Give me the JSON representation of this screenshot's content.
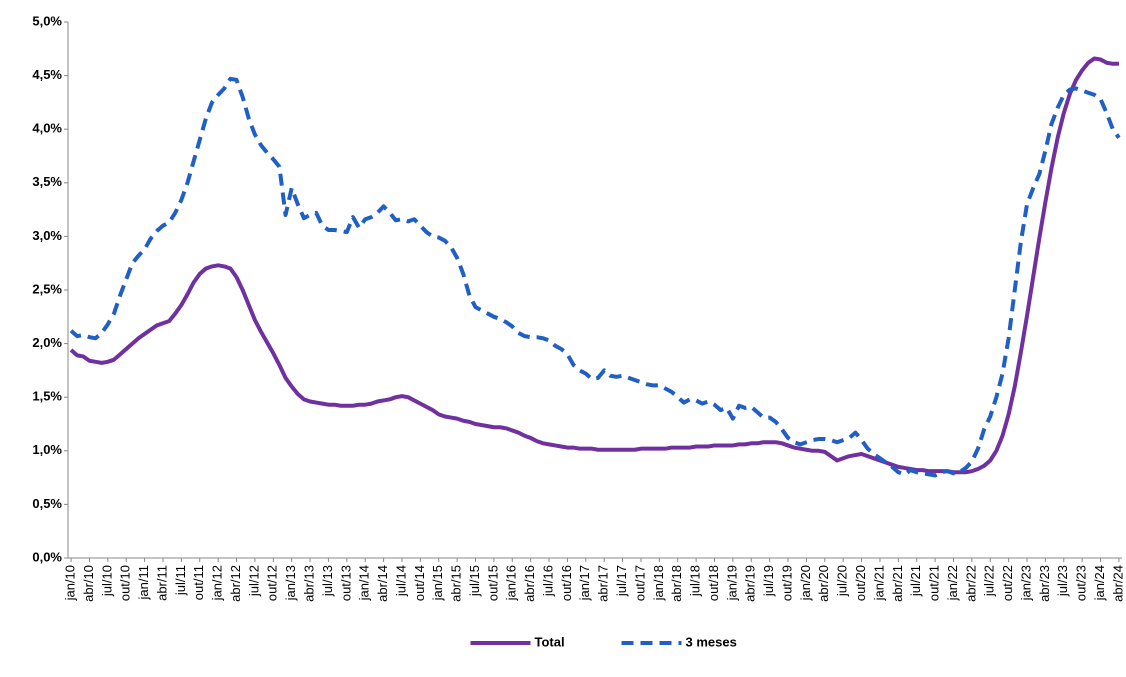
{
  "chart_data": {
    "type": "line",
    "categories": [
      "jan/10",
      null,
      null,
      "abr/10",
      null,
      null,
      "jul/10",
      null,
      null,
      "out/10",
      null,
      null,
      "jan/11",
      null,
      null,
      "abr/11",
      null,
      null,
      "jul/11",
      null,
      null,
      "out/11",
      null,
      null,
      "jan/12",
      null,
      null,
      "abr/12",
      null,
      null,
      "jul/12",
      null,
      null,
      "out/12",
      null,
      null,
      "jan/13",
      null,
      null,
      "abr/13",
      null,
      null,
      "jul/13",
      null,
      null,
      "out/13",
      null,
      null,
      "jan/14",
      null,
      null,
      "abr/14",
      null,
      null,
      "jul/14",
      null,
      null,
      "out/14",
      null,
      null,
      "jan/15",
      null,
      null,
      "abr/15",
      null,
      null,
      "jul/15",
      null,
      null,
      "out/15",
      null,
      null,
      "jan/16",
      null,
      null,
      "abr/16",
      null,
      null,
      "jul/16",
      null,
      null,
      "out/16",
      null,
      null,
      "jan/17",
      null,
      null,
      "abr/17",
      null,
      null,
      "jul/17",
      null,
      null,
      "out/17",
      null,
      null,
      "jan/18",
      null,
      null,
      "abr/18",
      null,
      null,
      "jul/18",
      null,
      null,
      "out/18",
      null,
      null,
      "jan/19",
      null,
      null,
      "abr/19",
      null,
      null,
      "jul/19",
      null,
      null,
      "out/19",
      null,
      null,
      "jan/20",
      null,
      null,
      "abr/20",
      null,
      null,
      "jul/20",
      null,
      null,
      "out/20",
      null,
      null,
      "jan/21",
      null,
      null,
      "abr/21",
      null,
      null,
      "jul/21",
      null,
      null,
      "out/21",
      null,
      null,
      "jan/22",
      null,
      null,
      "abr/22",
      null,
      null,
      "jul/22",
      null,
      null,
      "out/22",
      null,
      null,
      "jan/23",
      null,
      null,
      "abr/23",
      null,
      null,
      "jul/23",
      null,
      null,
      "out/23",
      null,
      null,
      "jan/24",
      null,
      null,
      "abr/24"
    ],
    "series": [
      {
        "name": "Total",
        "color": "#7030a0",
        "dash": false,
        "values": [
          1.94,
          1.89,
          1.88,
          1.84,
          1.83,
          1.82,
          1.83,
          1.85,
          1.9,
          1.95,
          2.0,
          2.05,
          2.09,
          2.13,
          2.17,
          2.19,
          2.21,
          2.28,
          2.36,
          2.46,
          2.57,
          2.65,
          2.7,
          2.72,
          2.73,
          2.72,
          2.7,
          2.62,
          2.5,
          2.36,
          2.22,
          2.11,
          2.01,
          1.91,
          1.8,
          1.68,
          1.6,
          1.53,
          1.48,
          1.46,
          1.45,
          1.44,
          1.43,
          1.43,
          1.42,
          1.42,
          1.42,
          1.43,
          1.43,
          1.44,
          1.46,
          1.47,
          1.48,
          1.5,
          1.51,
          1.5,
          1.47,
          1.44,
          1.41,
          1.38,
          1.34,
          1.32,
          1.31,
          1.3,
          1.28,
          1.27,
          1.25,
          1.24,
          1.23,
          1.22,
          1.22,
          1.21,
          1.19,
          1.17,
          1.14,
          1.12,
          1.09,
          1.07,
          1.06,
          1.05,
          1.04,
          1.03,
          1.03,
          1.02,
          1.02,
          1.02,
          1.01,
          1.01,
          1.01,
          1.01,
          1.01,
          1.01,
          1.01,
          1.02,
          1.02,
          1.02,
          1.02,
          1.02,
          1.03,
          1.03,
          1.03,
          1.03,
          1.04,
          1.04,
          1.04,
          1.05,
          1.05,
          1.05,
          1.05,
          1.06,
          1.06,
          1.07,
          1.07,
          1.08,
          1.08,
          1.08,
          1.07,
          1.05,
          1.03,
          1.02,
          1.01,
          1.0,
          1.0,
          0.99,
          0.95,
          0.91,
          0.93,
          0.95,
          0.96,
          0.97,
          0.95,
          0.93,
          0.91,
          0.89,
          0.87,
          0.85,
          0.84,
          0.83,
          0.82,
          0.82,
          0.81,
          0.81,
          0.81,
          0.81,
          0.8,
          0.8,
          0.8,
          0.81,
          0.83,
          0.86,
          0.91,
          1.0,
          1.14,
          1.34,
          1.6,
          1.92,
          2.26,
          2.62,
          2.98,
          3.32,
          3.64,
          3.92,
          4.15,
          4.33,
          4.46,
          4.55,
          4.62,
          4.66,
          4.65,
          4.62,
          4.61,
          4.61
        ]
      },
      {
        "name": "3 meses",
        "color": "#1f5fc6",
        "dash": true,
        "values": [
          2.12,
          2.07,
          2.08,
          2.06,
          2.05,
          2.1,
          2.18,
          2.28,
          2.45,
          2.6,
          2.75,
          2.82,
          2.88,
          2.98,
          3.05,
          3.1,
          3.13,
          3.22,
          3.34,
          3.5,
          3.7,
          3.9,
          4.1,
          4.25,
          4.32,
          4.38,
          4.47,
          4.46,
          4.3,
          4.1,
          3.95,
          3.85,
          3.78,
          3.72,
          3.65,
          3.2,
          3.45,
          3.3,
          3.17,
          3.2,
          3.22,
          3.1,
          3.06,
          3.06,
          3.05,
          3.04,
          3.18,
          3.08,
          3.16,
          3.18,
          3.22,
          3.28,
          3.22,
          3.15,
          3.16,
          3.14,
          3.16,
          3.1,
          3.04,
          3.0,
          2.99,
          2.96,
          2.9,
          2.8,
          2.65,
          2.45,
          2.34,
          2.31,
          2.28,
          2.25,
          2.23,
          2.2,
          2.16,
          2.1,
          2.07,
          2.06,
          2.06,
          2.05,
          2.03,
          1.98,
          1.95,
          1.9,
          1.8,
          1.75,
          1.72,
          1.67,
          1.68,
          1.75,
          1.7,
          1.69,
          1.7,
          1.68,
          1.66,
          1.64,
          1.62,
          1.61,
          1.61,
          1.58,
          1.55,
          1.5,
          1.45,
          1.48,
          1.47,
          1.44,
          1.46,
          1.43,
          1.38,
          1.4,
          1.3,
          1.42,
          1.4,
          1.41,
          1.36,
          1.31,
          1.31,
          1.27,
          1.2,
          1.12,
          1.08,
          1.06,
          1.08,
          1.1,
          1.11,
          1.11,
          1.1,
          1.08,
          1.1,
          1.12,
          1.17,
          1.1,
          1.02,
          0.97,
          0.93,
          0.89,
          0.85,
          0.8,
          0.78,
          0.82,
          0.8,
          0.79,
          0.78,
          0.77,
          0.8,
          0.81,
          0.79,
          0.8,
          0.84,
          0.9,
          1.02,
          1.2,
          1.32,
          1.5,
          1.72,
          2.05,
          2.5,
          2.95,
          3.3,
          3.45,
          3.58,
          3.8,
          4.05,
          4.2,
          4.32,
          4.37,
          4.38,
          4.36,
          4.34,
          4.32,
          4.28,
          4.15,
          4.0,
          3.92
        ]
      }
    ],
    "ylim": [
      0,
      5
    ],
    "yticks": [
      {
        "value": 0,
        "label": "0,0%"
      },
      {
        "value": 0.5,
        "label": "0,5%"
      },
      {
        "value": 1,
        "label": "1,0%"
      },
      {
        "value": 1.5,
        "label": "1,5%"
      },
      {
        "value": 2,
        "label": "2,0%"
      },
      {
        "value": 2.5,
        "label": "2,5%"
      },
      {
        "value": 3,
        "label": "3,0%"
      },
      {
        "value": 3.5,
        "label": "3,5%"
      },
      {
        "value": 4,
        "label": "4,0%"
      },
      {
        "value": 4.5,
        "label": "4,5%"
      },
      {
        "value": 5,
        "label": "5,0%"
      }
    ],
    "grid": false,
    "legend": "bottom"
  }
}
